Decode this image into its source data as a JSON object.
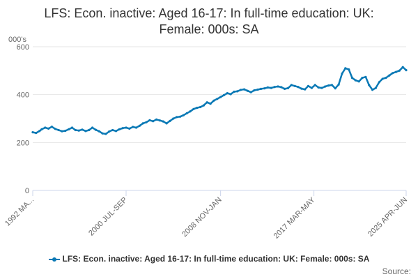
{
  "chart_data": {
    "type": "line",
    "title": "LFS: Econ. inactive: Aged 16-17: In full-time education: UK: Female: 000s: SA",
    "title_lines": [
      "LFS: Econ. inactive: Aged 16-17: In full-time education: UK:",
      "Female: 000s: SA"
    ],
    "y_unit_label": "000's",
    "ylim": [
      0,
      600
    ],
    "y_ticks": [
      "0",
      "200",
      "400",
      "600"
    ],
    "x_ticks": [
      "1992 MA...",
      "2000 JUL-SEP",
      "2008 NOV-JAN",
      "2017 MAR-MAY",
      "2025 APR-JUN"
    ],
    "xlim": [
      1992.2,
      2025.4
    ],
    "x_tick_values": [
      1992.2,
      2000.5,
      2008.9,
      2017.2,
      2025.4
    ],
    "grid": true,
    "legend_position": "bottom",
    "credits": "Source:",
    "series": [
      {
        "name": "LFS: Econ. inactive: Aged 16-17: In full-time education: UK: Female: 000s: SA",
        "color": "#0a79b5",
        "x": [
          1992.2,
          1992.5,
          1992.8,
          1993.0,
          1993.3,
          1993.6,
          1993.9,
          1994.2,
          1994.5,
          1994.8,
          1995.1,
          1995.4,
          1995.7,
          1996.0,
          1996.3,
          1996.6,
          1996.9,
          1997.2,
          1997.5,
          1997.8,
          1998.1,
          1998.4,
          1998.7,
          1999.0,
          1999.3,
          1999.6,
          1999.9,
          2000.2,
          2000.5,
          2000.8,
          2001.1,
          2001.4,
          2001.7,
          2002.0,
          2002.3,
          2002.6,
          2002.9,
          2003.2,
          2003.5,
          2003.8,
          2004.1,
          2004.4,
          2004.7,
          2005.0,
          2005.3,
          2005.6,
          2005.9,
          2006.2,
          2006.5,
          2006.8,
          2007.1,
          2007.4,
          2007.7,
          2008.0,
          2008.3,
          2008.6,
          2008.9,
          2009.2,
          2009.5,
          2009.8,
          2010.1,
          2010.4,
          2010.7,
          2011.0,
          2011.3,
          2011.6,
          2011.9,
          2012.2,
          2012.5,
          2012.8,
          2013.1,
          2013.4,
          2013.7,
          2014.0,
          2014.3,
          2014.6,
          2014.9,
          2015.2,
          2015.5,
          2015.8,
          2016.1,
          2016.4,
          2016.7,
          2017.0,
          2017.3,
          2017.6,
          2017.9,
          2018.2,
          2018.5,
          2018.8,
          2019.1,
          2019.4,
          2019.7,
          2020.0,
          2020.3,
          2020.6,
          2020.9,
          2021.2,
          2021.5,
          2021.8,
          2022.1,
          2022.4,
          2022.7,
          2023.0,
          2023.3,
          2023.6,
          2023.9,
          2024.2,
          2024.5,
          2024.8,
          2025.1,
          2025.4
        ],
        "values": [
          243,
          240,
          248,
          255,
          262,
          258,
          266,
          257,
          252,
          247,
          249,
          255,
          262,
          252,
          250,
          254,
          248,
          252,
          262,
          253,
          247,
          238,
          236,
          246,
          252,
          248,
          255,
          260,
          262,
          258,
          265,
          262,
          270,
          280,
          285,
          293,
          289,
          296,
          292,
          288,
          280,
          290,
          300,
          306,
          308,
          314,
          322,
          330,
          340,
          345,
          348,
          355,
          368,
          362,
          375,
          382,
          390,
          398,
          406,
          402,
          412,
          414,
          420,
          422,
          416,
          410,
          418,
          421,
          424,
          426,
          430,
          428,
          432,
          434,
          431,
          424,
          427,
          440,
          436,
          432,
          425,
          422,
          436,
          428,
          440,
          430,
          428,
          434,
          438,
          440,
          426,
          442,
          488,
          510,
          505,
          470,
          460,
          455,
          470,
          474,
          440,
          420,
          428,
          452,
          466,
          470,
          480,
          490,
          495,
          500,
          515,
          502
        ]
      }
    ]
  }
}
